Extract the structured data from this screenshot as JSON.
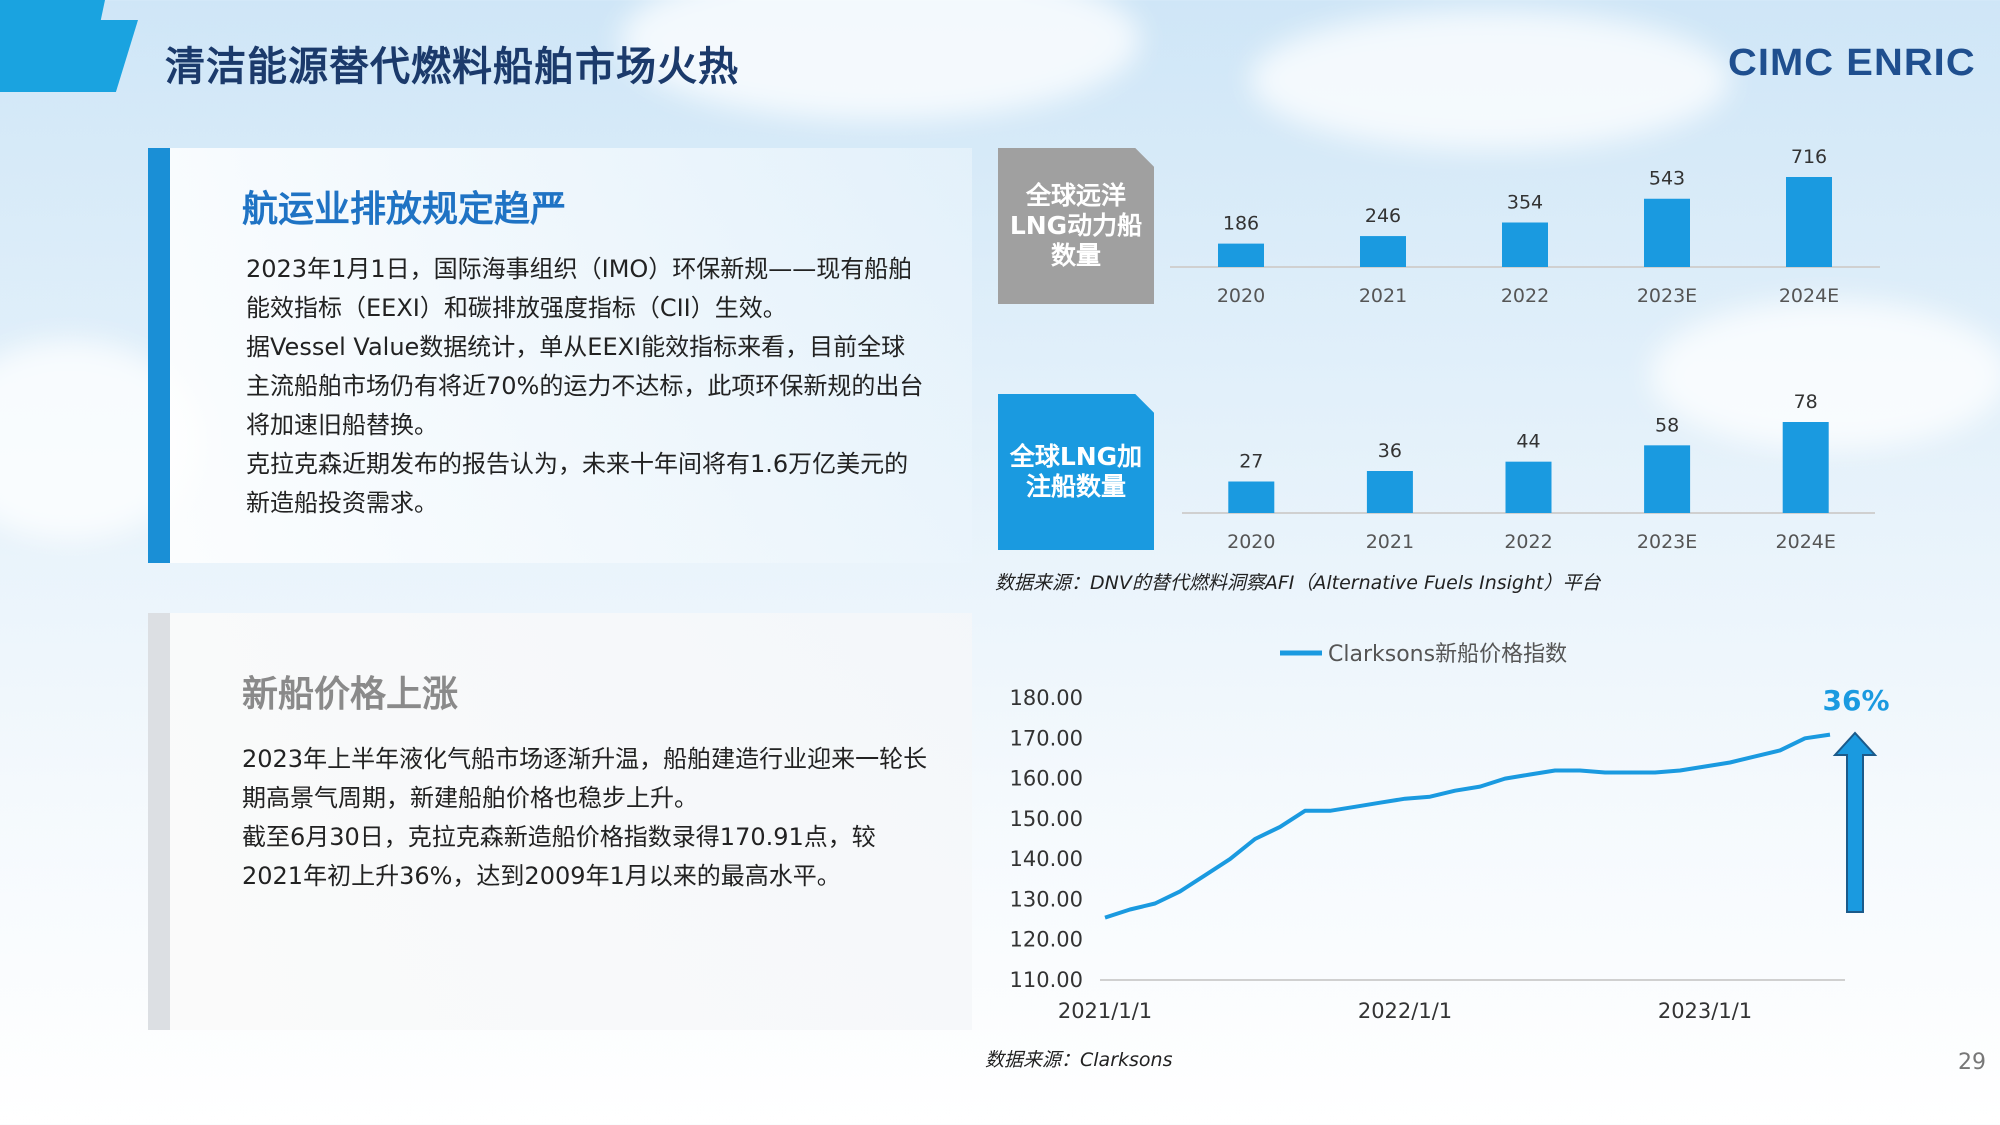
{
  "header": {
    "title": "清洁能源替代燃料船舶市场火热",
    "logo_text": "CIMC ENRIC"
  },
  "section1": {
    "title": "航运业排放规定趋严",
    "paragraphs": [
      "2023年1月1日，国际海事组织（IMO）环保新规——现有船舶能效指标（EEXI）和碳排放强度指标（CII）生效。",
      "据Vessel Value数据统计，单从EEXI能效指标来看，目前全球主流船舶市场仍有将近70%的运力不达标，此项环保新规的出台将加速旧船替换。",
      "克拉克森近期发布的报告认为，未来十年间将有1.6万亿美元的新造船投资需求。"
    ]
  },
  "section2": {
    "title": "新船价格上涨",
    "paragraphs": [
      "2023年上半年液化气船市场逐渐升温，船舶建造行业迎来一轮长期高景气周期，新建船舶价格也稳步上升。",
      "截至6月30日，克拉克森新造船价格指数录得170.91点，较2021年初上升36%，达到2009年1月以来的最高水平。"
    ]
  },
  "source1": "数据来源：DNV的替代燃料洞察AFI（Alternative Fuels Insight）平台",
  "source2": "数据来源：Clarksons",
  "page_number": "29",
  "colors": {
    "accent": "#1a9ae0",
    "title": "#1b3a6b",
    "bar": "#1a9ae0",
    "gray_box": "#a0a0a0"
  },
  "chart_data": [
    {
      "type": "bar",
      "label": "全球远洋LNG动力船数量",
      "categories": [
        "2020",
        "2021",
        "2022",
        "2023E",
        "2024E"
      ],
      "values": [
        186,
        246,
        354,
        543,
        716
      ]
    },
    {
      "type": "bar",
      "label": "全球LNG加注船数量",
      "categories": [
        "2020",
        "2021",
        "2022",
        "2023E",
        "2024E"
      ],
      "values": [
        27,
        36,
        44,
        58,
        78
      ]
    },
    {
      "type": "line",
      "series": [
        {
          "name": "Clarksons新船价格指数",
          "x": [
            "2021-01",
            "2021-02",
            "2021-03",
            "2021-04",
            "2021-05",
            "2021-06",
            "2021-07",
            "2021-08",
            "2021-09",
            "2021-10",
            "2021-11",
            "2021-12",
            "2022-01",
            "2022-02",
            "2022-03",
            "2022-04",
            "2022-05",
            "2022-06",
            "2022-07",
            "2022-08",
            "2022-09",
            "2022-10",
            "2022-11",
            "2022-12",
            "2023-01",
            "2023-02",
            "2023-03",
            "2023-04",
            "2023-05",
            "2023-06"
          ],
          "values": [
            125.5,
            127.5,
            129,
            132,
            136,
            140,
            145,
            148,
            152,
            152,
            153,
            154,
            155,
            155.5,
            157,
            158,
            160,
            161,
            162,
            162,
            161.5,
            161.5,
            161.5,
            162,
            163,
            164,
            165.5,
            167,
            170,
            170.91
          ]
        }
      ],
      "x_tick_labels": [
        "2021/1/1",
        "2022/1/1",
        "2023/1/1"
      ],
      "y_tick_labels": [
        "110.00",
        "120.00",
        "130.00",
        "140.00",
        "150.00",
        "160.00",
        "170.00",
        "180.00"
      ],
      "ylim": [
        110,
        180
      ],
      "legend": "top",
      "annotation": "36%"
    }
  ]
}
